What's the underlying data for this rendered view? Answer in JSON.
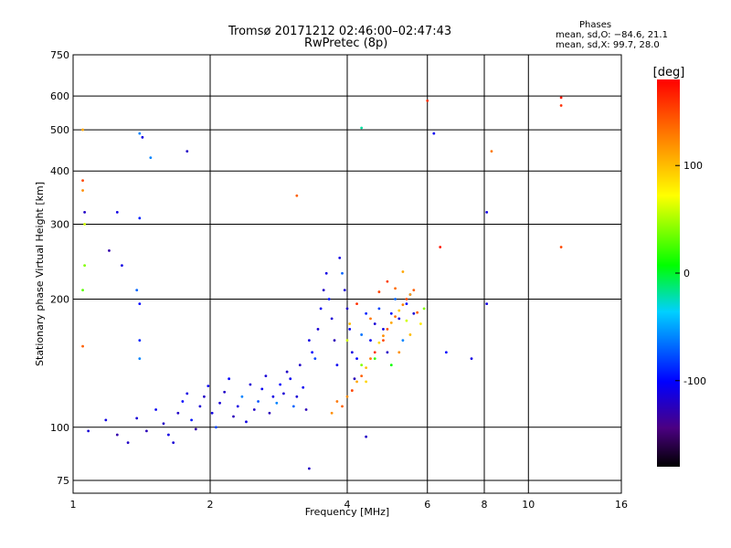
{
  "chart_data": {
    "type": "scatter",
    "title": "Tromsø 20171212 02:46:00–02:47:43",
    "subtitle": "RwPretec (8p)",
    "xlabel": "Frequency [MHz]",
    "ylabel": "Stationary phase Virtual Height [km]",
    "x_scale": "log",
    "y_scale": "log",
    "xlim": [
      1,
      16
    ],
    "ylim": [
      70,
      750
    ],
    "x_ticks": [
      1,
      2,
      4,
      6,
      8,
      10,
      16
    ],
    "x_tick_labels": [
      "1",
      "2",
      "4",
      "6",
      "8",
      "10",
      "16"
    ],
    "y_ticks": [
      75,
      100,
      200,
      300,
      400,
      500,
      600,
      750
    ],
    "y_tick_labels": [
      "75",
      "100",
      "200",
      "300",
      "400",
      "500",
      "600",
      "750"
    ],
    "grid": true,
    "annotation": {
      "title": "Phases",
      "lines": [
        "mean, sd,O: −84.6, 21.1",
        "mean, sd,X: 99.7, 28.0"
      ]
    },
    "colorbar": {
      "label": "[deg]",
      "range": [
        -180,
        180
      ],
      "ticks": [
        100,
        0,
        -100
      ],
      "tick_labels": [
        "100",
        "0",
        "-100"
      ],
      "colormap": "rainbow"
    },
    "series": [
      {
        "points": [
          [
            1.08,
            98,
            -115
          ],
          [
            1.18,
            104,
            -110
          ],
          [
            1.25,
            96,
            -130
          ],
          [
            1.32,
            92,
            -120
          ],
          [
            1.38,
            105,
            -115
          ],
          [
            1.45,
            98,
            -125
          ],
          [
            1.52,
            110,
            -105
          ],
          [
            1.58,
            102,
            -120
          ],
          [
            1.62,
            96,
            -110
          ],
          [
            1.66,
            92,
            -115
          ],
          [
            1.7,
            108,
            -120
          ],
          [
            1.74,
            115,
            -100
          ],
          [
            1.78,
            120,
            -110
          ],
          [
            1.82,
            104,
            -95
          ],
          [
            1.86,
            99,
            -130
          ],
          [
            1.9,
            112,
            -115
          ],
          [
            1.94,
            118,
            -120
          ],
          [
            1.98,
            125,
            -105
          ],
          [
            2.02,
            108,
            -110
          ],
          [
            2.06,
            100,
            -80
          ],
          [
            2.1,
            114,
            -115
          ],
          [
            2.15,
            121,
            -120
          ],
          [
            2.2,
            130,
            -100
          ],
          [
            2.25,
            106,
            -125
          ],
          [
            2.3,
            112,
            -110
          ],
          [
            2.35,
            118,
            -60
          ],
          [
            2.4,
            103,
            -110
          ],
          [
            2.45,
            126,
            -115
          ],
          [
            2.5,
            110,
            -120
          ],
          [
            2.55,
            115,
            -75
          ],
          [
            2.6,
            123,
            -105
          ],
          [
            2.65,
            132,
            -115
          ],
          [
            2.7,
            108,
            -125
          ],
          [
            2.75,
            118,
            -110
          ],
          [
            2.8,
            114,
            -60
          ],
          [
            2.85,
            126,
            -100
          ],
          [
            2.9,
            120,
            -115
          ],
          [
            2.95,
            135,
            -120
          ],
          [
            3.0,
            130,
            -105
          ],
          [
            3.05,
            112,
            -70
          ],
          [
            3.1,
            118,
            -115
          ],
          [
            3.15,
            140,
            -120
          ],
          [
            3.2,
            124,
            -105
          ],
          [
            3.25,
            110,
            -125
          ],
          [
            3.3,
            160,
            -110
          ],
          [
            3.35,
            150,
            -100
          ],
          [
            3.4,
            145,
            -80
          ],
          [
            3.45,
            170,
            -115
          ],
          [
            3.5,
            190,
            -105
          ],
          [
            3.55,
            210,
            -120
          ],
          [
            3.6,
            230,
            -110
          ],
          [
            3.65,
            200,
            -95
          ],
          [
            3.7,
            180,
            -115
          ],
          [
            3.75,
            160,
            -125
          ],
          [
            3.8,
            140,
            -105
          ],
          [
            3.85,
            250,
            -110
          ],
          [
            3.9,
            230,
            -70
          ],
          [
            3.95,
            210,
            -115
          ],
          [
            4.0,
            190,
            -120
          ],
          [
            4.05,
            170,
            -105
          ],
          [
            4.1,
            150,
            -110
          ],
          [
            4.15,
            130,
            -125
          ],
          [
            4.2,
            145,
            -100
          ],
          [
            4.3,
            165,
            -65
          ],
          [
            4.4,
            185,
            -90
          ],
          [
            4.5,
            160,
            -105
          ],
          [
            4.6,
            175,
            -115
          ],
          [
            4.7,
            190,
            -80
          ],
          [
            4.8,
            170,
            -110
          ],
          [
            4.9,
            150,
            -120
          ],
          [
            5.0,
            185,
            -95
          ],
          [
            5.1,
            200,
            -70
          ],
          [
            5.2,
            180,
            -110
          ],
          [
            5.3,
            160,
            -60
          ],
          [
            5.4,
            195,
            -100
          ],
          [
            5.5,
            205,
            -75
          ],
          [
            5.6,
            185,
            -115
          ],
          [
            1.4,
            490,
            -60
          ],
          [
            1.42,
            480,
            -110
          ],
          [
            1.48,
            430,
            -60
          ],
          [
            1.25,
            320,
            -110
          ],
          [
            1.4,
            310,
            -90
          ],
          [
            1.06,
            320,
            -120
          ],
          [
            1.2,
            260,
            -130
          ],
          [
            1.28,
            240,
            -110
          ],
          [
            1.38,
            210,
            -70
          ],
          [
            1.4,
            195,
            -100
          ],
          [
            1.4,
            160,
            -90
          ],
          [
            1.4,
            145,
            -60
          ],
          [
            1.78,
            445,
            -120
          ],
          [
            3.3,
            80,
            -120
          ],
          [
            4.4,
            95,
            -120
          ],
          [
            6.6,
            150,
            -100
          ],
          [
            7.5,
            145,
            -110
          ],
          [
            8.1,
            195,
            -110
          ],
          [
            8.1,
            320,
            -110
          ],
          [
            6.2,
            490,
            -105
          ]
        ]
      },
      {
        "points": [
          [
            1.05,
            500,
            110
          ],
          [
            1.05,
            380,
            150
          ],
          [
            1.05,
            360,
            120
          ],
          [
            1.06,
            300,
            60
          ],
          [
            1.06,
            240,
            40
          ],
          [
            1.05,
            210,
            30
          ],
          [
            1.05,
            155,
            140
          ],
          [
            3.1,
            350,
            140
          ],
          [
            4.3,
            505,
            -20
          ],
          [
            6.0,
            585,
            160
          ],
          [
            6.4,
            265,
            170
          ],
          [
            8.3,
            445,
            130
          ],
          [
            11.8,
            595,
            170
          ],
          [
            11.8,
            570,
            160
          ],
          [
            11.8,
            265,
            150
          ],
          [
            3.8,
            115,
            130
          ],
          [
            3.9,
            112,
            140
          ],
          [
            4.0,
            118,
            120
          ],
          [
            4.1,
            122,
            150
          ],
          [
            4.2,
            128,
            110
          ],
          [
            4.3,
            132,
            140
          ],
          [
            4.4,
            138,
            100
          ],
          [
            4.5,
            145,
            130
          ],
          [
            4.6,
            150,
            160
          ],
          [
            4.7,
            158,
            90
          ],
          [
            4.8,
            164,
            120
          ],
          [
            4.9,
            170,
            145
          ],
          [
            5.0,
            176,
            110
          ],
          [
            5.1,
            182,
            135
          ],
          [
            5.2,
            188,
            95
          ],
          [
            5.3,
            194,
            125
          ],
          [
            5.4,
            200,
            150
          ],
          [
            5.5,
            205,
            115
          ],
          [
            5.6,
            210,
            140
          ],
          [
            4.2,
            195,
            160
          ],
          [
            4.5,
            180,
            130
          ],
          [
            4.8,
            160,
            150
          ],
          [
            5.2,
            150,
            120
          ],
          [
            5.5,
            165,
            100
          ],
          [
            5.8,
            175,
            80
          ],
          [
            4.0,
            160,
            60
          ],
          [
            4.3,
            140,
            40
          ],
          [
            4.6,
            145,
            20
          ],
          [
            5.0,
            140,
            10
          ],
          [
            5.4,
            178,
            60
          ],
          [
            5.7,
            186,
            140
          ],
          [
            5.3,
            232,
            110
          ],
          [
            4.9,
            220,
            155
          ],
          [
            5.1,
            212,
            135
          ],
          [
            3.7,
            108,
            120
          ],
          [
            4.4,
            128,
            90
          ],
          [
            5.9,
            190,
            40
          ],
          [
            4.05,
            175,
            100
          ],
          [
            4.7,
            208,
            150
          ]
        ]
      }
    ]
  }
}
